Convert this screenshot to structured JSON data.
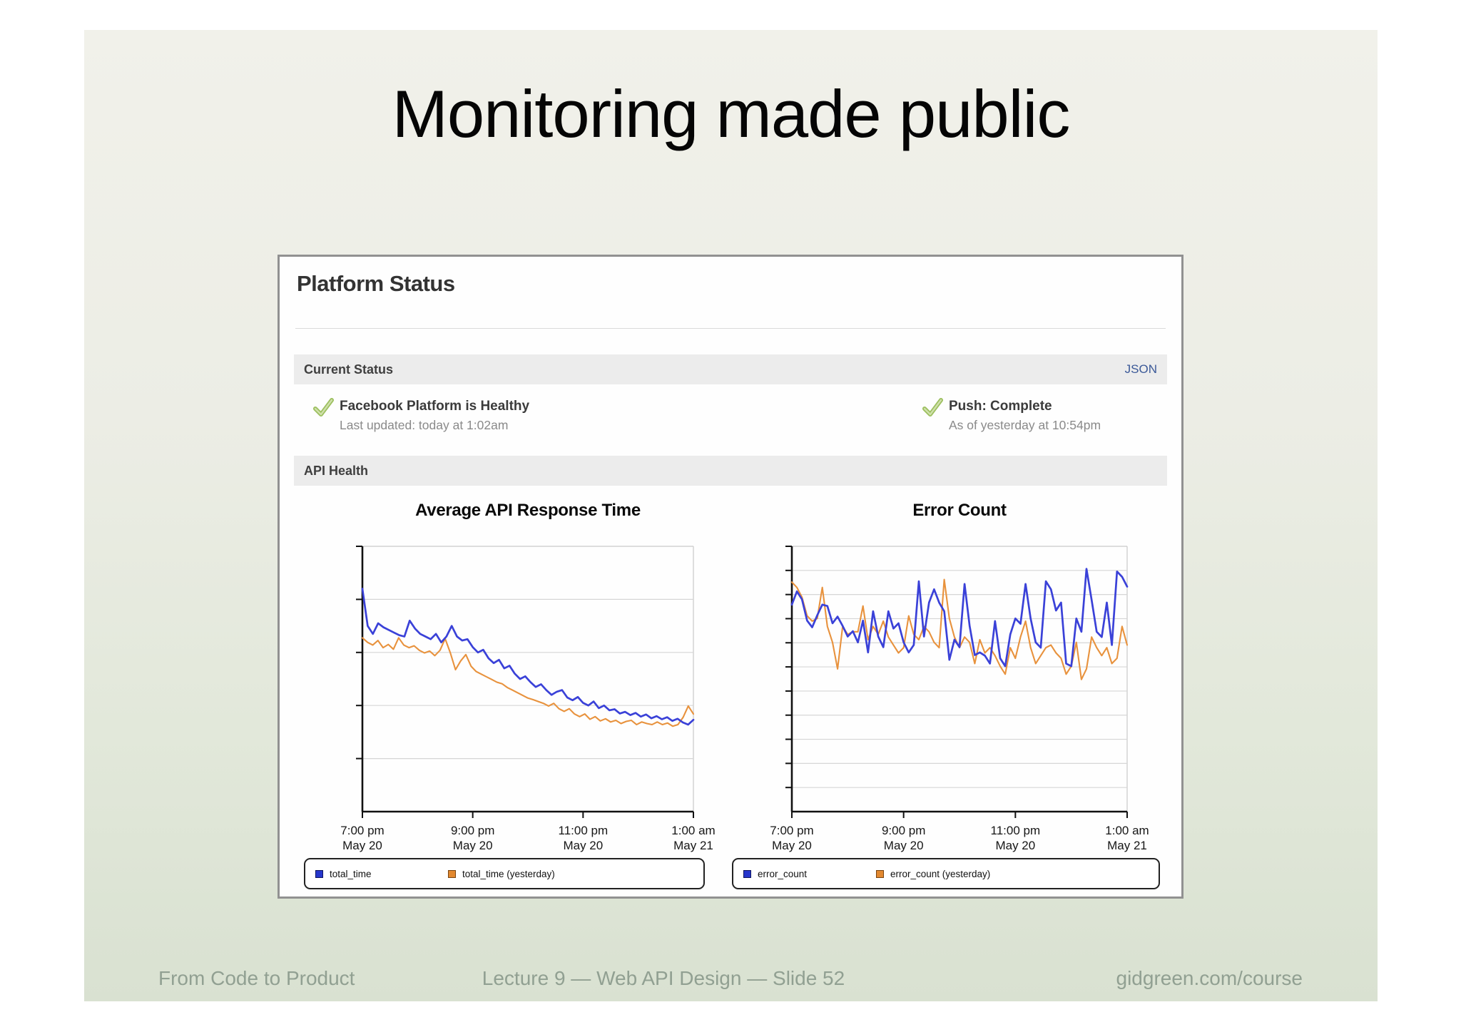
{
  "slide": {
    "title": "Monitoring made public",
    "footer": {
      "left": "From Code to Product",
      "center": "Lecture 9 — Web API Design — Slide 52",
      "right": "gidgreen.com/course"
    }
  },
  "panel": {
    "title": "Platform Status",
    "current_status": {
      "header": "Current Status",
      "json_link": "JSON",
      "statuses": [
        {
          "icon": "check-icon",
          "title": "Facebook Platform is Healthy",
          "subtitle": "Last updated: today at 1:02am"
        },
        {
          "icon": "check-icon",
          "title": "Push: Complete",
          "subtitle": "As of yesterday at 10:54pm"
        }
      ]
    },
    "api_health": {
      "header": "API Health"
    }
  },
  "colors": {
    "accent_link": "#3b5998",
    "chart_blue": "#3a41d8",
    "chart_orange": "#e8923d",
    "check_green": "#94bb55",
    "panel_border": "#919191",
    "footer_text": "#91a092"
  },
  "chart_data": [
    {
      "type": "line",
      "title": "Average API Response Time",
      "xlabel": "",
      "ylabel": "",
      "x_tick_labels": [
        [
          "7:00 pm",
          "May 20"
        ],
        [
          "9:00 pm",
          "May 20"
        ],
        [
          "11:00 pm",
          "May 20"
        ],
        [
          "1:00 am",
          "May 21"
        ]
      ],
      "y_axis_note": "y-axis ticks are unlabeled in the source image; values are normalized plot height (0 = bottom axis, 1 = top of plot)",
      "grid_fractions_top": [
        0.2,
        0.4,
        0.6,
        0.8
      ],
      "legend_position": "bottom",
      "series": [
        {
          "name": "total_time",
          "color": "#3a41d8",
          "values": [
            0.84,
            0.7,
            0.67,
            0.71,
            0.695,
            0.685,
            0.675,
            0.665,
            0.66,
            0.72,
            0.69,
            0.67,
            0.66,
            0.65,
            0.67,
            0.638,
            0.66,
            0.7,
            0.66,
            0.645,
            0.65,
            0.62,
            0.6,
            0.61,
            0.578,
            0.56,
            0.572,
            0.54,
            0.55,
            0.52,
            0.5,
            0.51,
            0.488,
            0.47,
            0.48,
            0.458,
            0.44,
            0.452,
            0.458,
            0.43,
            0.42,
            0.432,
            0.41,
            0.4,
            0.415,
            0.39,
            0.4,
            0.382,
            0.386,
            0.37,
            0.376,
            0.364,
            0.372,
            0.358,
            0.366,
            0.352,
            0.36,
            0.348,
            0.356,
            0.342,
            0.35,
            0.336,
            0.328,
            0.346
          ]
        },
        {
          "name": "total_time (yesterday)",
          "color": "#e8923d",
          "values": [
            0.655,
            0.638,
            0.628,
            0.645,
            0.618,
            0.63,
            0.612,
            0.655,
            0.628,
            0.618,
            0.625,
            0.608,
            0.598,
            0.605,
            0.588,
            0.608,
            0.652,
            0.598,
            0.535,
            0.568,
            0.592,
            0.548,
            0.528,
            0.518,
            0.508,
            0.498,
            0.488,
            0.482,
            0.468,
            0.458,
            0.448,
            0.438,
            0.428,
            0.422,
            0.415,
            0.408,
            0.398,
            0.408,
            0.388,
            0.378,
            0.388,
            0.368,
            0.358,
            0.368,
            0.348,
            0.358,
            0.342,
            0.35,
            0.338,
            0.344,
            0.332,
            0.34,
            0.344,
            0.328,
            0.338,
            0.332,
            0.328,
            0.338,
            0.328,
            0.334,
            0.322,
            0.328,
            0.355,
            0.398,
            0.368
          ]
        }
      ]
    },
    {
      "type": "line",
      "title": "Error Count",
      "xlabel": "",
      "ylabel": "",
      "x_tick_labels": [
        [
          "7:00 pm",
          "May 20"
        ],
        [
          "9:00 pm",
          "May 20"
        ],
        [
          "11:00 pm",
          "May 20"
        ],
        [
          "1:00 am",
          "May 21"
        ]
      ],
      "y_axis_note": "y-axis ticks are unlabeled in the source image; values are normalized plot height (0 = bottom axis, 1 = top of plot)",
      "grid_fractions_top": [
        0.0909,
        0.1818,
        0.2727,
        0.3636,
        0.4545,
        0.5455,
        0.6364,
        0.7273,
        0.8182,
        0.9091
      ],
      "legend_position": "bottom",
      "series": [
        {
          "name": "error_count",
          "color": "#3a41d8",
          "values": [
            0.78,
            0.83,
            0.8,
            0.72,
            0.695,
            0.74,
            0.78,
            0.775,
            0.71,
            0.735,
            0.7,
            0.66,
            0.68,
            0.638,
            0.72,
            0.6,
            0.755,
            0.66,
            0.62,
            0.755,
            0.69,
            0.71,
            0.638,
            0.6,
            0.628,
            0.868,
            0.66,
            0.788,
            0.838,
            0.788,
            0.755,
            0.572,
            0.648,
            0.62,
            0.858,
            0.7,
            0.59,
            0.6,
            0.588,
            0.558,
            0.718,
            0.578,
            0.548,
            0.668,
            0.728,
            0.708,
            0.858,
            0.728,
            0.638,
            0.618,
            0.868,
            0.838,
            0.758,
            0.788,
            0.558,
            0.548,
            0.728,
            0.678,
            0.915,
            0.798,
            0.678,
            0.658,
            0.788,
            0.628,
            0.905,
            0.885,
            0.848
          ]
        },
        {
          "name": "error_count (yesterday)",
          "color": "#e8923d",
          "values": [
            0.865,
            0.845,
            0.808,
            0.738,
            0.718,
            0.728,
            0.845,
            0.698,
            0.638,
            0.538,
            0.698,
            0.668,
            0.678,
            0.678,
            0.775,
            0.648,
            0.698,
            0.668,
            0.718,
            0.658,
            0.628,
            0.598,
            0.618,
            0.738,
            0.668,
            0.648,
            0.698,
            0.678,
            0.638,
            0.618,
            0.875,
            0.728,
            0.658,
            0.618,
            0.658,
            0.638,
            0.558,
            0.648,
            0.598,
            0.618,
            0.588,
            0.548,
            0.518,
            0.618,
            0.578,
            0.658,
            0.718,
            0.618,
            0.558,
            0.588,
            0.618,
            0.628,
            0.598,
            0.578,
            0.518,
            0.548,
            0.638,
            0.498,
            0.538,
            0.658,
            0.618,
            0.588,
            0.618,
            0.558,
            0.578,
            0.698,
            0.628
          ]
        }
      ]
    }
  ]
}
